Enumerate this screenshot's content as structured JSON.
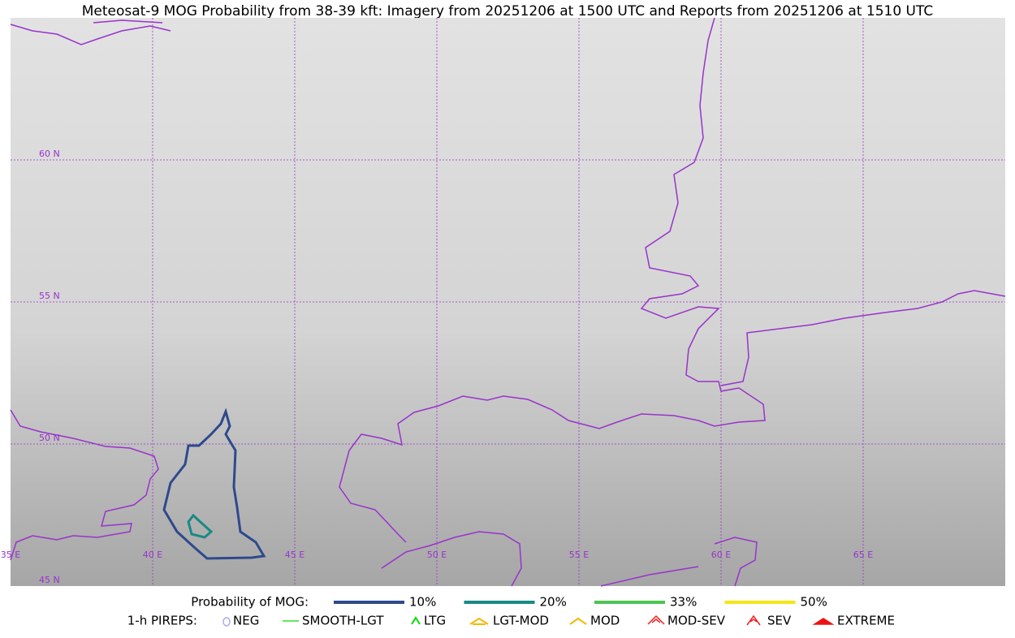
{
  "title": "Meteosat-9 MOG Probability from 38-39 kft: Imagery from 20251206 at 1500 UTC and Reports from 20251206 at 1510 UTC",
  "map": {
    "lat_labels": [
      "60 N",
      "55 N",
      "50 N",
      "45 N"
    ],
    "lon_labels": [
      "35 E",
      "40 E",
      "45 E",
      "50 E",
      "55 E",
      "60 E",
      "65 E"
    ],
    "grid_color": "#9933cc"
  },
  "legend": {
    "mog_title": "Probability of MOG:",
    "mog_levels": [
      {
        "label": "10%",
        "color": "#2e4a8c"
      },
      {
        "label": "20%",
        "color": "#1a8a84"
      },
      {
        "label": "33%",
        "color": "#4cc552"
      },
      {
        "label": "50%",
        "color": "#f5e614"
      }
    ],
    "pireps_title": "1-h PIREPS:",
    "pireps": [
      {
        "label": "NEG",
        "color": "#aaaaee"
      },
      {
        "label": "SMOOTH-LGT",
        "color": "#33dd33"
      },
      {
        "label": "LTG",
        "color": "#00dd00"
      },
      {
        "label": "LGT-MOD",
        "color": "#f5b800"
      },
      {
        "label": "MOD",
        "color": "#f5b800"
      },
      {
        "label": "MOD-SEV",
        "color": "#ee2222"
      },
      {
        "label": "SEV",
        "color": "#ee2222"
      },
      {
        "label": "EXTREME",
        "color": "#ee1111"
      }
    ]
  }
}
